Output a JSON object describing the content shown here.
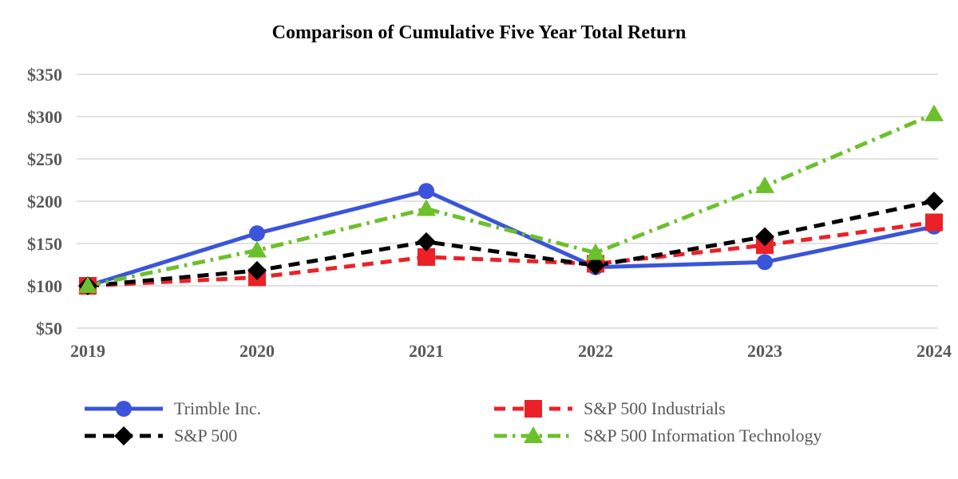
{
  "page": {
    "background": "#FFFFFF"
  },
  "chart_data": {
    "type": "line",
    "title": "Comparison of Cumulative Five Year Total Return",
    "categories": [
      "2019",
      "2020",
      "2021",
      "2022",
      "2023",
      "2024"
    ],
    "series": [
      {
        "name": "Trimble Inc.",
        "values": [
          100,
          162,
          212,
          122,
          128,
          170
        ],
        "color": "#3A55D9",
        "marker": "circle",
        "dash": "solid"
      },
      {
        "name": "S&P 500",
        "values": [
          100,
          118,
          152,
          124,
          158,
          200
        ],
        "color": "#000000",
        "marker": "diamond",
        "dash": "dashed"
      },
      {
        "name": "S&P 500 Industrials",
        "values": [
          100,
          110,
          134,
          126,
          148,
          175
        ],
        "color": "#EB2127",
        "marker": "square",
        "dash": "dashed"
      },
      {
        "name": "S&P 500 Information Technology",
        "values": [
          100,
          142,
          191,
          139,
          218,
          303
        ],
        "color": "#6CC02C",
        "marker": "triangle",
        "dash": "dash-dot"
      }
    ],
    "ylim": [
      50,
      350
    ],
    "yticks": [
      {
        "label": "$350",
        "value": 350
      },
      {
        "label": "$300",
        "value": 300
      },
      {
        "label": "$250",
        "value": 250
      },
      {
        "label": "$200",
        "value": 200
      },
      {
        "label": "$150",
        "value": 150
      },
      {
        "label": "$100",
        "value": 100
      },
      {
        "label": "$50",
        "value": 50
      }
    ],
    "ytick_prefix": "$",
    "grid": "horizontal",
    "grid_color": "#E2E2E2",
    "axis_text_color": "#595959",
    "legend_position": "bottom"
  }
}
